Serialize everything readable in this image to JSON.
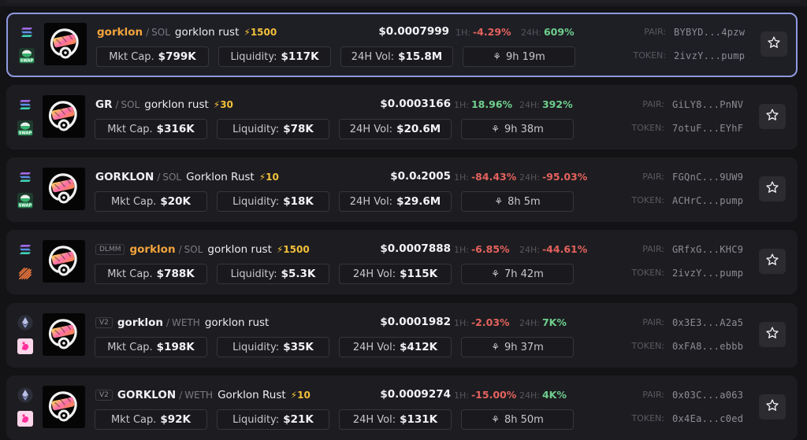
{
  "labels": {
    "mkt_cap": "Mkt Cap.",
    "liquidity": "Liquidity:",
    "vol_24h": "24H Vol:",
    "h1": "1H:",
    "h24": "24H:",
    "pair": "PAIR:",
    "token": "TOKEN:"
  },
  "colors": {
    "positive": "#6fcf8e",
    "negative": "#e5625d",
    "accent_orange": "#f3a43c",
    "boost_yellow": "#f3c03a",
    "selected_border": "#8f99e0"
  },
  "rows": [
    {
      "selected": true,
      "chain": "solana-icon",
      "dex": "swap-icon",
      "tag": "",
      "symbol": "gorklon",
      "symbol_style": "orange",
      "quote": "SOL",
      "name": "gorklon rust",
      "boost": "⚡1500",
      "price": "$0.0007999",
      "change_1h": "-4.29%",
      "change_1h_dir": "neg",
      "change_24h": "609%",
      "change_24h_dir": "pos",
      "mkt_cap": "$799K",
      "liquidity": "$117K",
      "volume": "$15.8M",
      "age": "9h 19m",
      "pair": "BYBYD...4pzw",
      "token": "2ivzY...pump"
    },
    {
      "selected": false,
      "chain": "solana-icon",
      "dex": "swap-icon",
      "tag": "",
      "symbol": "GR",
      "symbol_style": "white",
      "quote": "SOL",
      "name": "gorklon rust",
      "boost": "⚡30",
      "price": "$0.0003166",
      "change_1h": "18.96%",
      "change_1h_dir": "pos",
      "change_24h": "392%",
      "change_24h_dir": "pos",
      "mkt_cap": "$316K",
      "liquidity": "$78K",
      "volume": "$20.6M",
      "age": "9h 38m",
      "pair": "GiLY8...PnNV",
      "token": "7otuF...EYhF"
    },
    {
      "selected": false,
      "chain": "solana-icon",
      "dex": "swap-icon",
      "tag": "",
      "symbol": "GORKLON",
      "symbol_style": "white",
      "quote": "SOL",
      "name": "Gorklon Rust",
      "boost": "⚡10",
      "price": "$0.0₄2005",
      "change_1h": "-84.43%",
      "change_1h_dir": "neg",
      "change_24h": "-95.03%",
      "change_24h_dir": "neg",
      "mkt_cap": "$20K",
      "liquidity": "$18K",
      "volume": "$29.6M",
      "age": "8h 5m",
      "pair": "FGQnC...9UW9",
      "token": "ACHrC...pump"
    },
    {
      "selected": false,
      "chain": "solana-icon",
      "dex": "meteora-icon",
      "tag": "DLMM",
      "symbol": "gorklon",
      "symbol_style": "orange",
      "quote": "SOL",
      "name": "gorklon rust",
      "boost": "⚡1500",
      "price": "$0.0007888",
      "change_1h": "-6.85%",
      "change_1h_dir": "neg",
      "change_24h": "-44.61%",
      "change_24h_dir": "neg",
      "mkt_cap": "$788K",
      "liquidity": "$5.3K",
      "volume": "$115K",
      "age": "7h 42m",
      "pair": "GRfxG...KHC9",
      "token": "2ivzY...pump"
    },
    {
      "selected": false,
      "chain": "ethereum-icon",
      "dex": "uniswap-icon",
      "tag": "V2",
      "symbol": "gorklon",
      "symbol_style": "white",
      "quote": "WETH",
      "name": "gorklon rust",
      "boost": "",
      "price": "$0.0001982",
      "change_1h": "-2.03%",
      "change_1h_dir": "neg",
      "change_24h": "7K%",
      "change_24h_dir": "pos",
      "mkt_cap": "$198K",
      "liquidity": "$35K",
      "volume": "$412K",
      "age": "9h 37m",
      "pair": "0x3E3...A2a5",
      "token": "0xFA8...ebbb"
    },
    {
      "selected": false,
      "chain": "ethereum-icon",
      "dex": "uniswap-icon",
      "tag": "V2",
      "symbol": "GORKLON",
      "symbol_style": "white",
      "quote": "WETH",
      "name": "Gorklon Rust",
      "boost": "⚡10",
      "price": "$0.0009274",
      "change_1h": "-15.00%",
      "change_1h_dir": "neg",
      "change_24h": "4K%",
      "change_24h_dir": "pos",
      "mkt_cap": "$92K",
      "liquidity": "$21K",
      "volume": "$131K",
      "age": "8h 50m",
      "pair": "0x03C...a063",
      "token": "0x4Ea...c0ed"
    }
  ]
}
